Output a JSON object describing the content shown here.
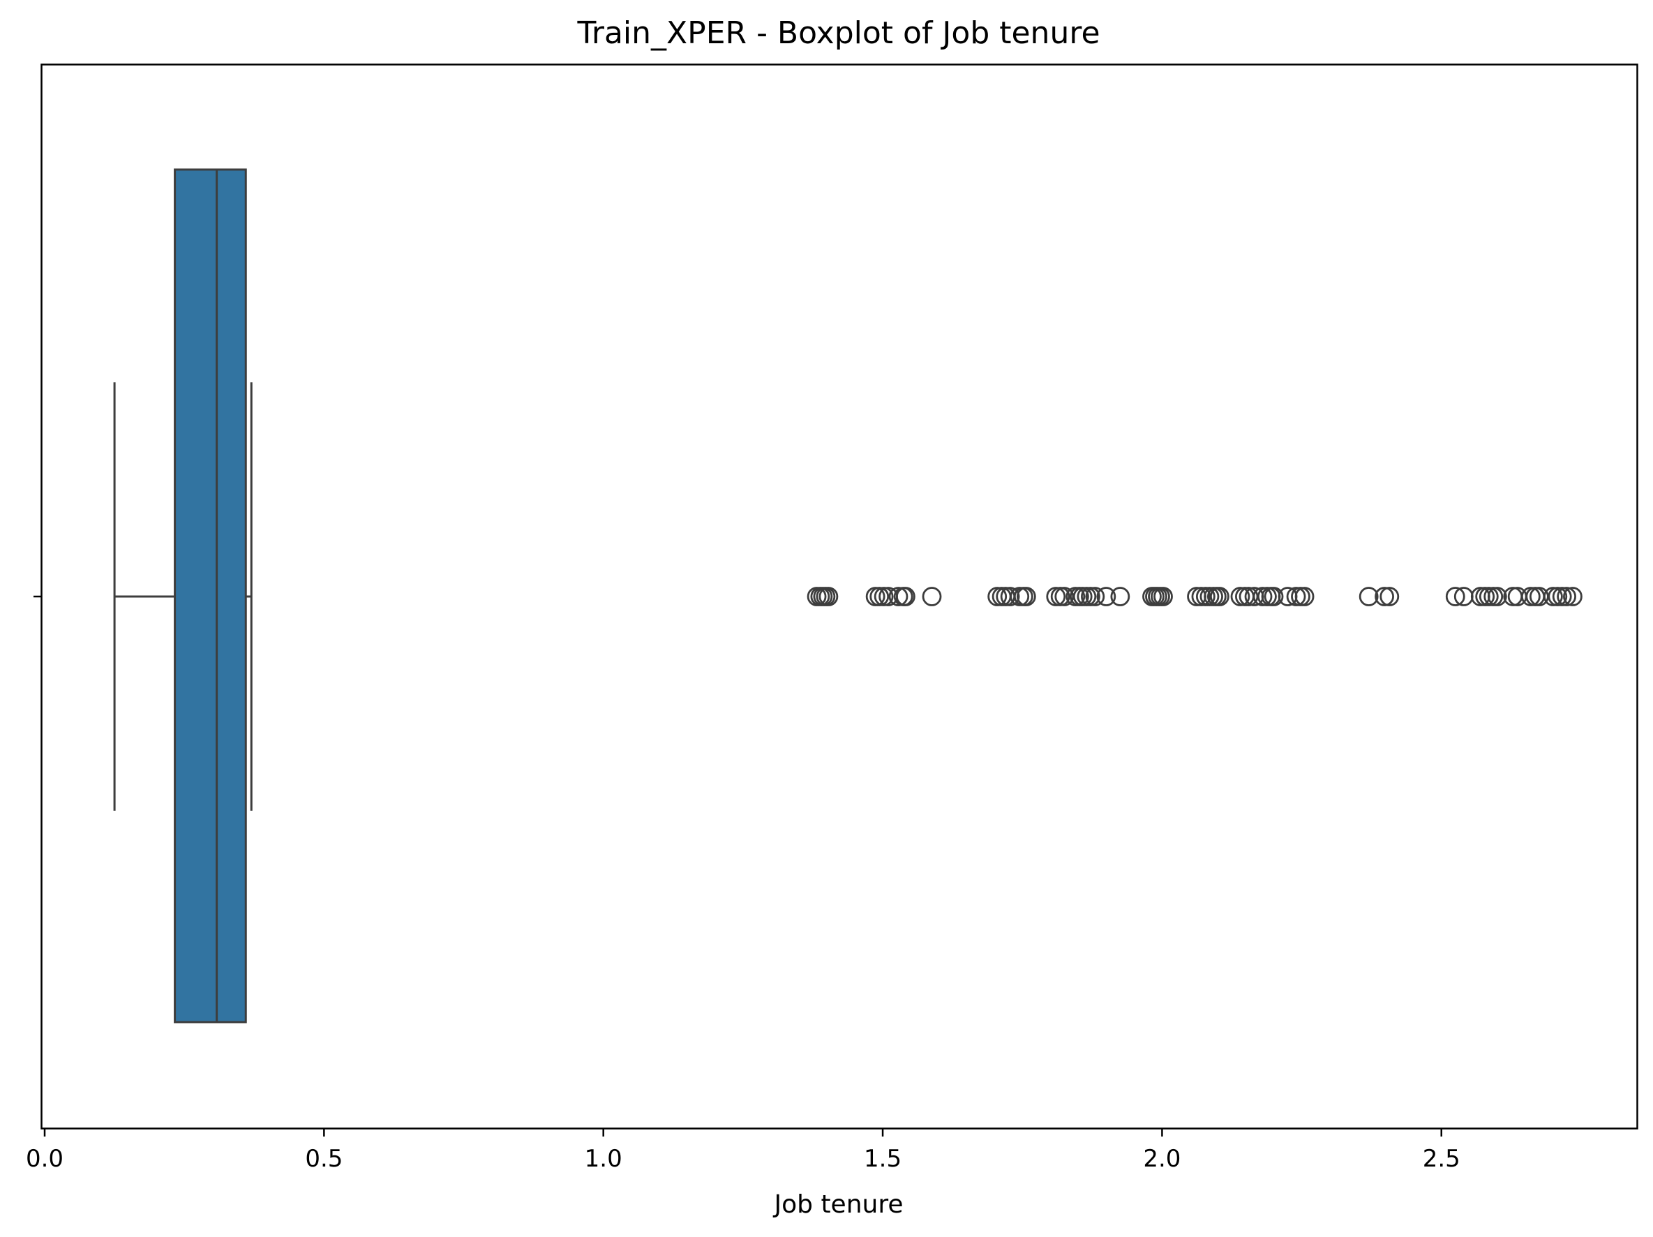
{
  "chart_data": {
    "type": "boxplot",
    "title": "Train_XPER - Boxplot of Job tenure",
    "xlabel": "Job tenure",
    "ylabel": "",
    "orientation": "horizontal",
    "xlim": [
      -0.005,
      2.85
    ],
    "xticks": [
      0.0,
      0.5,
      1.0,
      1.5,
      2.0,
      2.5
    ],
    "xtick_labels": [
      "0.0",
      "0.5",
      "1.0",
      "1.5",
      "2.0",
      "2.5"
    ],
    "grid": false,
    "box": {
      "whisker_low": 0.125,
      "q1": 0.233,
      "median": 0.308,
      "q3": 0.36,
      "whisker_high": 0.37
    },
    "outliers": [
      1.382,
      1.388,
      1.393,
      1.398,
      1.403,
      1.487,
      1.494,
      1.502,
      1.51,
      1.528,
      1.537,
      1.541,
      1.588,
      1.705,
      1.713,
      1.72,
      1.728,
      1.745,
      1.752,
      1.757,
      1.81,
      1.818,
      1.825,
      1.845,
      1.852,
      1.858,
      1.865,
      1.872,
      1.88,
      1.9,
      1.925,
      1.982,
      1.987,
      1.992,
      1.997,
      2.002,
      2.062,
      2.07,
      2.078,
      2.085,
      2.092,
      2.098,
      2.103,
      2.14,
      2.148,
      2.155,
      2.165,
      2.18,
      2.188,
      2.195,
      2.2,
      2.225,
      2.24,
      2.248,
      2.255,
      2.37,
      2.398,
      2.407,
      2.525,
      2.54,
      2.57,
      2.578,
      2.585,
      2.593,
      2.6,
      2.628,
      2.636,
      2.66,
      2.668,
      2.675,
      2.7,
      2.708,
      2.716,
      2.724,
      2.735
    ],
    "colors": {
      "box_fill": "#3274a1",
      "line": "#3d3d3d",
      "axes": "#000000"
    }
  }
}
